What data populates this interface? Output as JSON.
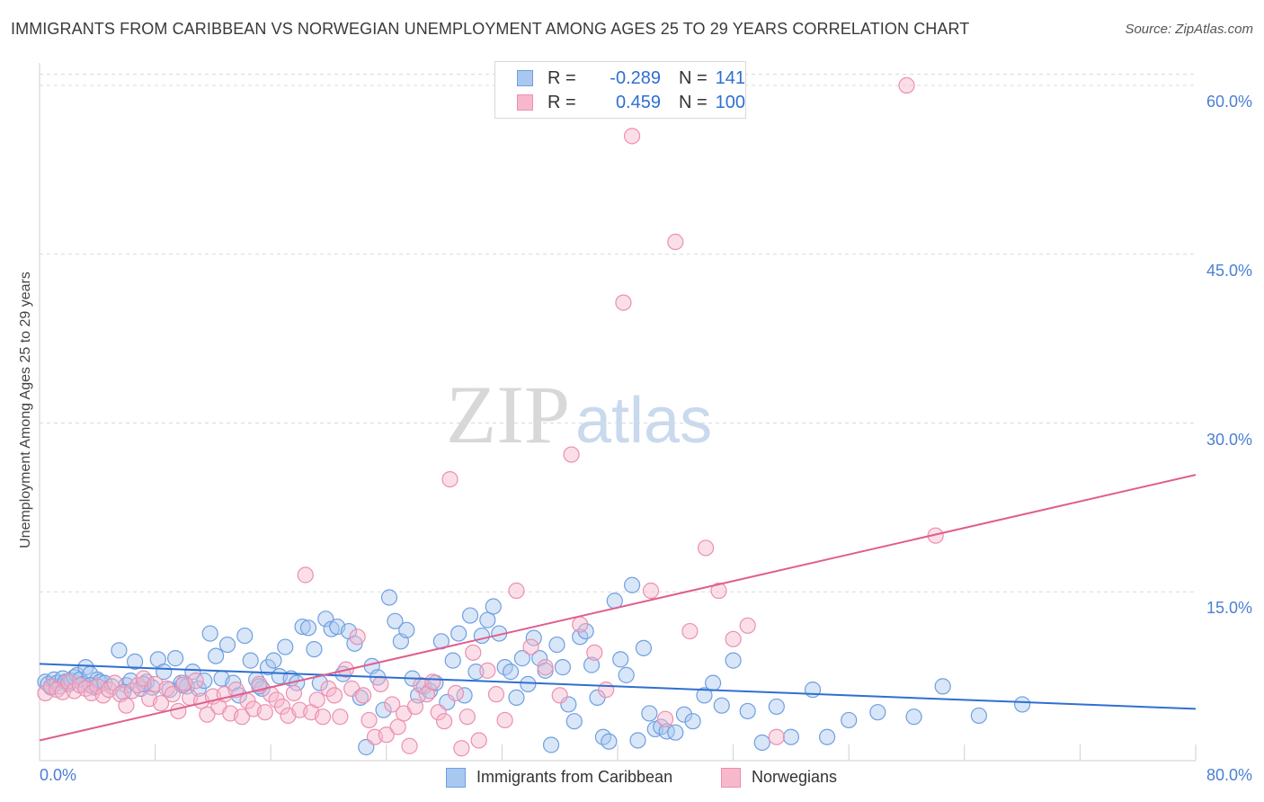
{
  "title": "IMMIGRANTS FROM CARIBBEAN VS NORWEGIAN UNEMPLOYMENT AMONG AGES 25 TO 29 YEARS CORRELATION CHART",
  "source": "Source: ZipAtlas.com",
  "watermark": {
    "zip": "ZIP",
    "atlas": "atlas"
  },
  "legend": {
    "rows": [
      {
        "r_label": "R =",
        "r_value": "-0.289",
        "n_label": "N =",
        "n_value": "141"
      },
      {
        "r_label": "R =",
        "r_value": "0.459",
        "n_label": "N =",
        "n_value": "100"
      }
    ]
  },
  "bottom_legend": {
    "series1": "Immigrants from Caribbean",
    "series2": "Norwegians"
  },
  "colors": {
    "series1_fill": "#a9c8f0",
    "series1_stroke": "#6f9fe0",
    "series1_line": "#2f6fd0",
    "series2_fill": "#f7b8cc",
    "series2_stroke": "#ec8fb0",
    "series2_line": "#e05e8f",
    "tick_text": "#4a7fd4",
    "grid": "#d9d9d9"
  },
  "chart_data": {
    "type": "scatter",
    "ylabel": "Unemployment Among Ages 25 to 29 years",
    "xlim": [
      0,
      80
    ],
    "ylim": [
      0,
      62
    ],
    "x_tick_labels": [
      "0.0%",
      "80.0%"
    ],
    "y_ticks": [
      15,
      30,
      45,
      60
    ],
    "y_tick_labels": [
      "15.0%",
      "30.0%",
      "45.0%",
      "60.0%"
    ],
    "grid": true,
    "series": [
      {
        "name": "Immigrants from Caribbean",
        "trend": {
          "x": [
            0,
            80
          ],
          "y": [
            8.6,
            4.6
          ]
        },
        "points": [
          [
            0.4,
            7.0
          ],
          [
            0.6,
            6.8
          ],
          [
            0.8,
            6.5
          ],
          [
            1.0,
            7.2
          ],
          [
            1.2,
            6.9
          ],
          [
            1.4,
            6.6
          ],
          [
            1.6,
            7.3
          ],
          [
            1.8,
            7.0
          ],
          [
            2.0,
            6.8
          ],
          [
            2.2,
            7.1
          ],
          [
            2.4,
            7.4
          ],
          [
            2.6,
            7.6
          ],
          [
            2.8,
            7.2
          ],
          [
            3.0,
            6.8
          ],
          [
            3.2,
            8.3
          ],
          [
            3.5,
            7.7
          ],
          [
            3.8,
            6.5
          ],
          [
            4.0,
            7.2
          ],
          [
            4.2,
            7.0
          ],
          [
            4.5,
            6.9
          ],
          [
            5.0,
            6.6
          ],
          [
            5.5,
            9.8
          ],
          [
            6.0,
            6.7
          ],
          [
            6.3,
            7.1
          ],
          [
            6.6,
            8.8
          ],
          [
            7.0,
            6.4
          ],
          [
            7.4,
            7.0
          ],
          [
            7.8,
            6.5
          ],
          [
            8.2,
            9.0
          ],
          [
            8.6,
            7.9
          ],
          [
            9.0,
            6.3
          ],
          [
            9.4,
            9.1
          ],
          [
            9.8,
            6.9
          ],
          [
            10.2,
            6.6
          ],
          [
            10.6,
            7.9
          ],
          [
            11.0,
            6.4
          ],
          [
            11.4,
            7.1
          ],
          [
            11.8,
            11.3
          ],
          [
            12.2,
            9.3
          ],
          [
            12.6,
            7.3
          ],
          [
            13.0,
            10.3
          ],
          [
            13.4,
            6.9
          ],
          [
            13.8,
            5.8
          ],
          [
            14.2,
            11.1
          ],
          [
            14.6,
            8.9
          ],
          [
            15.0,
            7.2
          ],
          [
            15.4,
            6.4
          ],
          [
            15.8,
            8.3
          ],
          [
            16.2,
            8.9
          ],
          [
            16.6,
            7.5
          ],
          [
            17.0,
            10.1
          ],
          [
            17.4,
            7.3
          ],
          [
            17.8,
            6.9
          ],
          [
            18.2,
            11.9
          ],
          [
            18.6,
            11.8
          ],
          [
            19.0,
            9.9
          ],
          [
            19.4,
            6.9
          ],
          [
            19.8,
            12.6
          ],
          [
            20.2,
            11.7
          ],
          [
            20.6,
            11.9
          ],
          [
            21.0,
            7.7
          ],
          [
            21.4,
            11.5
          ],
          [
            21.8,
            10.4
          ],
          [
            22.2,
            5.6
          ],
          [
            22.6,
            1.2
          ],
          [
            23.0,
            8.4
          ],
          [
            23.4,
            7.4
          ],
          [
            23.8,
            4.5
          ],
          [
            24.2,
            14.5
          ],
          [
            24.6,
            12.4
          ],
          [
            25.0,
            10.6
          ],
          [
            25.4,
            11.6
          ],
          [
            25.8,
            7.3
          ],
          [
            26.2,
            5.8
          ],
          [
            26.6,
            6.6
          ],
          [
            27.0,
            6.2
          ],
          [
            27.4,
            6.9
          ],
          [
            27.8,
            10.6
          ],
          [
            28.2,
            5.2
          ],
          [
            28.6,
            8.9
          ],
          [
            29.0,
            11.3
          ],
          [
            29.4,
            5.8
          ],
          [
            29.8,
            12.9
          ],
          [
            30.2,
            7.9
          ],
          [
            30.6,
            11.1
          ],
          [
            31.0,
            12.5
          ],
          [
            31.4,
            13.7
          ],
          [
            31.8,
            11.3
          ],
          [
            32.2,
            8.3
          ],
          [
            32.6,
            7.9
          ],
          [
            33.0,
            5.6
          ],
          [
            33.4,
            9.1
          ],
          [
            33.8,
            6.8
          ],
          [
            34.2,
            10.9
          ],
          [
            34.6,
            9.1
          ],
          [
            35.0,
            8.0
          ],
          [
            35.4,
            1.4
          ],
          [
            35.8,
            10.3
          ],
          [
            36.2,
            8.3
          ],
          [
            36.6,
            5.0
          ],
          [
            37.0,
            3.5
          ],
          [
            37.4,
            11.0
          ],
          [
            37.8,
            11.5
          ],
          [
            38.2,
            8.5
          ],
          [
            38.6,
            5.6
          ],
          [
            39.0,
            2.1
          ],
          [
            39.4,
            1.7
          ],
          [
            39.8,
            14.2
          ],
          [
            40.2,
            9.0
          ],
          [
            40.6,
            7.6
          ],
          [
            41.0,
            15.6
          ],
          [
            41.4,
            1.8
          ],
          [
            41.8,
            10.0
          ],
          [
            42.2,
            4.2
          ],
          [
            42.6,
            2.8
          ],
          [
            43.0,
            3.0
          ],
          [
            43.4,
            2.6
          ],
          [
            44.0,
            2.5
          ],
          [
            44.6,
            4.1
          ],
          [
            45.2,
            3.5
          ],
          [
            46.0,
            5.8
          ],
          [
            46.6,
            6.9
          ],
          [
            47.2,
            4.9
          ],
          [
            48.0,
            8.9
          ],
          [
            49.0,
            4.4
          ],
          [
            50.0,
            1.6
          ],
          [
            51.0,
            4.8
          ],
          [
            52.0,
            2.1
          ],
          [
            53.5,
            6.3
          ],
          [
            54.5,
            2.1
          ],
          [
            56.0,
            3.6
          ],
          [
            58.0,
            4.3
          ],
          [
            60.5,
            3.9
          ],
          [
            62.5,
            6.6
          ],
          [
            65.0,
            4.0
          ],
          [
            68.0,
            5.0
          ],
          [
            3.5,
            6.7
          ],
          [
            5.8,
            6.1
          ],
          [
            9.9,
            6.7
          ],
          [
            15.2,
            6.6
          ],
          [
            7.2,
            6.8
          ]
        ]
      },
      {
        "name": "Norwegians",
        "trend": {
          "x": [
            0,
            80
          ],
          "y": [
            1.8,
            25.4
          ]
        },
        "points": [
          [
            0.4,
            6.0
          ],
          [
            0.8,
            6.6
          ],
          [
            1.2,
            6.3
          ],
          [
            1.6,
            6.1
          ],
          [
            2.0,
            7.0
          ],
          [
            2.4,
            6.2
          ],
          [
            2.8,
            6.7
          ],
          [
            3.2,
            6.4
          ],
          [
            3.6,
            6.0
          ],
          [
            4.0,
            6.6
          ],
          [
            4.4,
            5.8
          ],
          [
            4.8,
            6.3
          ],
          [
            5.2,
            6.9
          ],
          [
            5.6,
            5.9
          ],
          [
            6.0,
            4.9
          ],
          [
            6.4,
            6.2
          ],
          [
            6.8,
            6.7
          ],
          [
            7.2,
            7.3
          ],
          [
            7.6,
            5.5
          ],
          [
            8.0,
            6.8
          ],
          [
            8.4,
            5.1
          ],
          [
            8.8,
            6.4
          ],
          [
            9.2,
            5.9
          ],
          [
            9.6,
            4.4
          ],
          [
            10.0,
            6.9
          ],
          [
            10.4,
            5.6
          ],
          [
            10.8,
            7.1
          ],
          [
            11.2,
            5.3
          ],
          [
            11.6,
            4.1
          ],
          [
            12.0,
            5.7
          ],
          [
            12.4,
            4.8
          ],
          [
            12.8,
            5.9
          ],
          [
            13.2,
            4.2
          ],
          [
            13.6,
            6.3
          ],
          [
            14.0,
            3.9
          ],
          [
            14.4,
            5.3
          ],
          [
            14.8,
            4.6
          ],
          [
            15.2,
            6.8
          ],
          [
            15.6,
            4.3
          ],
          [
            16.0,
            5.9
          ],
          [
            16.4,
            5.4
          ],
          [
            16.8,
            4.8
          ],
          [
            17.2,
            4.0
          ],
          [
            17.6,
            6.0
          ],
          [
            18.0,
            4.5
          ],
          [
            18.4,
            16.5
          ],
          [
            18.8,
            4.3
          ],
          [
            19.2,
            5.4
          ],
          [
            19.6,
            3.9
          ],
          [
            20.0,
            6.4
          ],
          [
            20.4,
            5.8
          ],
          [
            20.8,
            3.9
          ],
          [
            21.2,
            8.1
          ],
          [
            21.6,
            6.4
          ],
          [
            22.0,
            11.0
          ],
          [
            22.4,
            5.8
          ],
          [
            22.8,
            3.6
          ],
          [
            23.2,
            2.1
          ],
          [
            23.6,
            6.8
          ],
          [
            24.0,
            2.3
          ],
          [
            24.4,
            5.0
          ],
          [
            24.8,
            3.0
          ],
          [
            25.2,
            4.2
          ],
          [
            25.6,
            1.3
          ],
          [
            26.0,
            4.8
          ],
          [
            26.4,
            6.7
          ],
          [
            26.8,
            5.9
          ],
          [
            27.2,
            7.0
          ],
          [
            27.6,
            4.3
          ],
          [
            28.0,
            3.5
          ],
          [
            28.4,
            25.0
          ],
          [
            28.8,
            6.0
          ],
          [
            29.2,
            1.1
          ],
          [
            29.6,
            3.9
          ],
          [
            30.0,
            9.6
          ],
          [
            30.4,
            1.8
          ],
          [
            31.0,
            8.0
          ],
          [
            31.6,
            5.9
          ],
          [
            32.2,
            3.6
          ],
          [
            33.0,
            15.1
          ],
          [
            34.0,
            10.1
          ],
          [
            35.0,
            8.3
          ],
          [
            36.0,
            5.8
          ],
          [
            36.8,
            27.2
          ],
          [
            37.4,
            12.1
          ],
          [
            38.4,
            9.6
          ],
          [
            39.2,
            6.3
          ],
          [
            40.4,
            40.7
          ],
          [
            41.0,
            55.5
          ],
          [
            42.3,
            15.1
          ],
          [
            43.3,
            3.7
          ],
          [
            44.0,
            46.1
          ],
          [
            45.0,
            11.5
          ],
          [
            46.1,
            18.9
          ],
          [
            47.0,
            15.1
          ],
          [
            48.0,
            10.8
          ],
          [
            49.0,
            12.0
          ],
          [
            51.0,
            2.1
          ],
          [
            60.0,
            60.0
          ],
          [
            62.0,
            20.0
          ]
        ]
      }
    ]
  }
}
